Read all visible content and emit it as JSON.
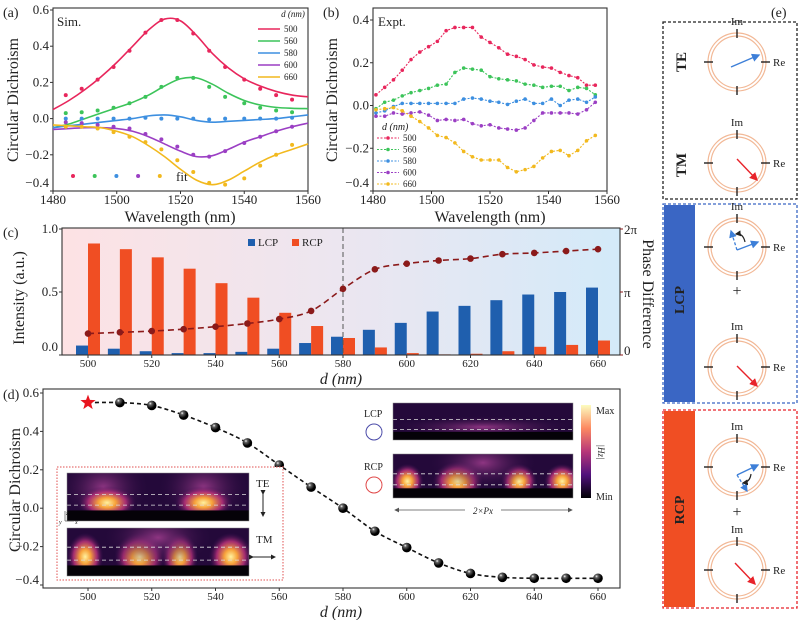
{
  "chart_data": [
    {
      "panel": "(a)",
      "type": "line",
      "annotation": "Sim.",
      "xlabel": "Wavelength (nm)",
      "ylabel": "Circular Dichroism",
      "xlim": [
        1480,
        1560
      ],
      "ylim": [
        -0.4,
        0.6
      ],
      "xticks": [
        1480,
        1500,
        1520,
        1540,
        1560
      ],
      "yticks": [
        -0.4,
        -0.2,
        0.0,
        0.2,
        0.4,
        0.6
      ],
      "legend_title": "d (nm)",
      "legend_position": "top-right",
      "fit_label": "fit",
      "x_fit": [
        1480,
        1485,
        1490,
        1495,
        1500,
        1505,
        1510,
        1515,
        1520,
        1525,
        1530,
        1535,
        1540,
        1545,
        1550,
        1555,
        1560
      ],
      "x_sim": [
        1484,
        1489,
        1494,
        1499,
        1504,
        1509,
        1514,
        1519,
        1524,
        1529,
        1534,
        1540,
        1545,
        1550,
        1555
      ],
      "series": [
        {
          "name": "500",
          "color": "#e8265c",
          "fit": [
            0.05,
            0.1,
            0.16,
            0.23,
            0.31,
            0.4,
            0.49,
            0.55,
            0.54,
            0.46,
            0.36,
            0.28,
            0.22,
            0.18,
            0.15,
            0.13,
            0.12
          ],
          "sim": [
            0.13,
            0.165,
            0.215,
            0.285,
            0.375,
            0.475,
            0.545,
            0.545,
            0.47,
            0.375,
            0.285,
            0.215,
            0.165,
            0.13,
            0.105
          ]
        },
        {
          "name": "560",
          "color": "#3cc45a",
          "fit": [
            -0.05,
            -0.03,
            0.0,
            0.03,
            0.06,
            0.09,
            0.13,
            0.18,
            0.22,
            0.225,
            0.19,
            0.14,
            0.1,
            0.075,
            0.062,
            0.057,
            0.055
          ],
          "sim": [
            0.03,
            0.035,
            0.045,
            0.06,
            0.085,
            0.12,
            0.175,
            0.225,
            0.225,
            0.175,
            0.12,
            0.085,
            0.06,
            0.045,
            0.035
          ]
        },
        {
          "name": "580",
          "color": "#3d8fe0",
          "fit": [
            -0.05,
            -0.04,
            -0.03,
            -0.02,
            -0.01,
            0.0,
            0.015,
            0.02,
            0.01,
            -0.01,
            -0.02,
            -0.015,
            -0.01,
            -0.005,
            0.0,
            0.01,
            0.02
          ],
          "sim": [
            0.0,
            0.0,
            0.0,
            0.0,
            0.0,
            0.005,
            0.0,
            0.0,
            0.0,
            -0.005,
            0.0,
            0.0,
            0.0,
            0.0,
            0.005
          ]
        },
        {
          "name": "600",
          "color": "#9b3fc4",
          "fit": [
            -0.06,
            -0.055,
            -0.05,
            -0.05,
            -0.055,
            -0.07,
            -0.1,
            -0.14,
            -0.18,
            -0.21,
            -0.205,
            -0.17,
            -0.13,
            -0.1,
            -0.07,
            -0.045,
            -0.025
          ],
          "sim": [
            -0.02,
            -0.025,
            -0.035,
            -0.045,
            -0.055,
            -0.085,
            -0.115,
            -0.155,
            -0.2,
            -0.21,
            -0.18,
            -0.135,
            -0.1,
            -0.07,
            -0.045
          ]
        },
        {
          "name": "660",
          "color": "#f2b91e",
          "fit": [
            -0.035,
            -0.04,
            -0.045,
            -0.05,
            -0.07,
            -0.1,
            -0.15,
            -0.21,
            -0.28,
            -0.34,
            -0.365,
            -0.34,
            -0.29,
            -0.24,
            -0.2,
            -0.17,
            -0.14
          ],
          "sim": [
            -0.045,
            -0.045,
            -0.055,
            -0.075,
            -0.1,
            -0.13,
            -0.17,
            -0.23,
            -0.295,
            -0.355,
            -0.365,
            -0.33,
            -0.26,
            -0.2,
            -0.145
          ]
        }
      ]
    },
    {
      "panel": "(b)",
      "type": "line",
      "annotation": "Expt.",
      "xlabel": "Wavelength (nm)",
      "ylabel": "Circular Dichroism",
      "xlim": [
        1480,
        1560
      ],
      "ylim": [
        -0.4,
        0.4
      ],
      "xticks": [
        1480,
        1500,
        1520,
        1540,
        1560
      ],
      "yticks": [
        -0.4,
        -0.2,
        0.0,
        0.2,
        0.4
      ],
      "legend_title": "d (nm)",
      "legend_position": "bottom-left",
      "x": [
        1481,
        1484,
        1487,
        1490,
        1493,
        1496,
        1499,
        1502,
        1505,
        1508,
        1511,
        1514,
        1517,
        1520,
        1523,
        1526,
        1529,
        1532,
        1535,
        1538,
        1541,
        1544,
        1547,
        1550,
        1553,
        1556
      ],
      "series": [
        {
          "name": "500",
          "color": "#e8265c",
          "values": [
            0.05,
            0.085,
            0.12,
            0.165,
            0.215,
            0.25,
            0.275,
            0.3,
            0.35,
            0.365,
            0.365,
            0.365,
            0.32,
            0.295,
            0.27,
            0.24,
            0.23,
            0.215,
            0.19,
            0.18,
            0.175,
            0.155,
            0.14,
            0.13,
            0.095,
            0.095
          ]
        },
        {
          "name": "560",
          "color": "#3cc45a",
          "values": [
            -0.015,
            0.015,
            0.025,
            0.045,
            0.06,
            0.07,
            0.08,
            0.095,
            0.1,
            0.155,
            0.175,
            0.17,
            0.165,
            0.135,
            0.125,
            0.12,
            0.115,
            0.1,
            0.095,
            0.085,
            0.09,
            0.09,
            0.07,
            0.085,
            0.08,
            0.05
          ]
        },
        {
          "name": "580",
          "color": "#3d8fe0",
          "values": [
            -0.035,
            -0.025,
            -0.005,
            0.01,
            0.01,
            0.01,
            0.01,
            0.01,
            0.01,
            0.01,
            0.03,
            0.035,
            0.03,
            0.02,
            0.015,
            0.005,
            0.02,
            0.03,
            0.01,
            0.01,
            0.03,
            0.0,
            0.025,
            0.03,
            0.015,
            0.04
          ]
        },
        {
          "name": "600",
          "color": "#9b3fc4",
          "values": [
            -0.05,
            -0.05,
            -0.035,
            -0.04,
            -0.035,
            -0.03,
            -0.045,
            -0.07,
            -0.065,
            -0.07,
            -0.065,
            -0.085,
            -0.095,
            -0.09,
            -0.105,
            -0.11,
            -0.115,
            -0.105,
            -0.07,
            -0.035,
            -0.035,
            -0.035,
            -0.035,
            -0.04,
            -0.02,
            0.015
          ]
        },
        {
          "name": "660",
          "color": "#f2b91e",
          "values": [
            -0.02,
            -0.015,
            -0.01,
            -0.025,
            -0.05,
            -0.075,
            -0.105,
            -0.14,
            -0.15,
            -0.175,
            -0.215,
            -0.24,
            -0.255,
            -0.255,
            -0.255,
            -0.29,
            -0.31,
            -0.3,
            -0.285,
            -0.245,
            -0.215,
            -0.21,
            -0.235,
            -0.21,
            -0.165,
            -0.14
          ]
        }
      ]
    },
    {
      "panel": "(c)",
      "type": "bar",
      "xlabel": "d (nm)",
      "ylabel": "Intensity (a.u.)",
      "y2label": "Phase Difference",
      "ylim": [
        0,
        1
      ],
      "yticks": [
        0.0,
        0.5,
        1.0
      ],
      "y2ticks": [
        "0",
        "π",
        "2π"
      ],
      "xticks": [
        500,
        520,
        540,
        560,
        580,
        600,
        620,
        640,
        660
      ],
      "legend_position": "top-center",
      "marker_line_d": 580,
      "categories": [
        500,
        510,
        520,
        530,
        540,
        550,
        560,
        570,
        580,
        590,
        600,
        610,
        620,
        630,
        640,
        650,
        660
      ],
      "series": [
        {
          "name": "LCP",
          "color": "#1f5fae",
          "values": [
            0.075,
            0.05,
            0.03,
            0.015,
            0.015,
            0.025,
            0.05,
            0.095,
            0.145,
            0.2,
            0.255,
            0.345,
            0.39,
            0.435,
            0.48,
            0.5,
            0.535
          ]
        },
        {
          "name": "RCP",
          "color": "#f04e23",
          "values": [
            0.885,
            0.84,
            0.775,
            0.685,
            0.57,
            0.455,
            0.335,
            0.23,
            0.135,
            0.06,
            0.015,
            0.005,
            0.01,
            0.03,
            0.065,
            0.08,
            0.115
          ]
        }
      ],
      "phase_difference": {
        "unit": "π",
        "color": "#8b1a1a",
        "values": [
          0.34,
          0.36,
          0.38,
          0.41,
          0.45,
          0.5,
          0.57,
          0.7,
          1.05,
          1.36,
          1.45,
          1.5,
          1.53,
          1.6,
          1.62,
          1.65,
          1.68
        ]
      }
    },
    {
      "panel": "(d)",
      "type": "scatter",
      "xlabel": "d (nm)",
      "ylabel": "Circular Dichroism",
      "xlim": [
        490,
        670
      ],
      "ylim": [
        -0.4,
        0.6
      ],
      "xticks": [
        500,
        520,
        540,
        560,
        580,
        600,
        620,
        640,
        660
      ],
      "yticks": [
        -0.4,
        -0.2,
        0.0,
        0.2,
        0.4,
        0.6
      ],
      "x": [
        500,
        510,
        520,
        530,
        540,
        550,
        560,
        570,
        580,
        590,
        600,
        610,
        620,
        630,
        640,
        650,
        660
      ],
      "values": [
        0.55,
        0.55,
        0.535,
        0.485,
        0.42,
        0.34,
        0.225,
        0.11,
        0.0,
        -0.12,
        -0.205,
        -0.285,
        -0.34,
        -0.36,
        -0.365,
        -0.365,
        -0.365
      ],
      "highlight": {
        "d": 500,
        "marker": "star",
        "color": "#e8141e"
      },
      "inset_left": {
        "te": "TE",
        "tm": "TM",
        "axis_z": "z",
        "axis_x": "x",
        "axis_y": "y"
      },
      "inset_right": {
        "lcp": "LCP",
        "rcp": "RCP",
        "max": "Max",
        "min": "Min",
        "field": "|Hz|",
        "period": "2×Px"
      }
    }
  ],
  "panel_e": {
    "label": "(e)",
    "te": "TE",
    "tm": "TM",
    "lcp": "LCP",
    "rcp": "RCP",
    "im": "Im",
    "re": "Re",
    "plus": "+",
    "colors": {
      "lcp": "#3a66c4",
      "rcp": "#f04e23",
      "ring": "#f2b896",
      "te_arrow": "#3d7fd8",
      "tm_arrow": "#e8232a"
    }
  }
}
